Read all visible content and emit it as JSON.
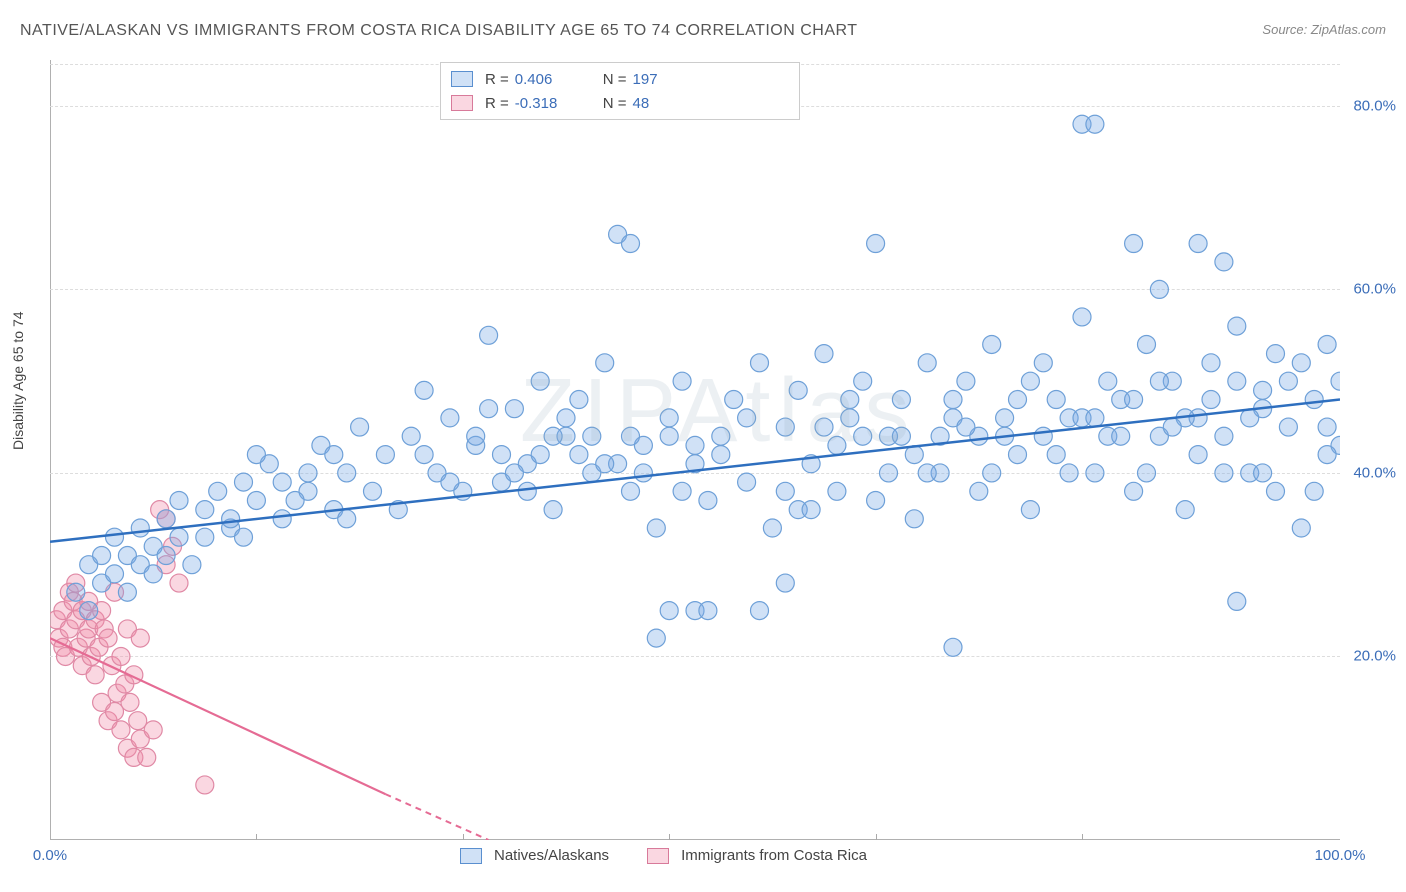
{
  "title": "NATIVE/ALASKAN VS IMMIGRANTS FROM COSTA RICA DISABILITY AGE 65 TO 74 CORRELATION CHART",
  "source_label": "Source:",
  "source_value": "ZipAtlas.com",
  "ylabel": "Disability Age 65 to 74",
  "watermark": "ZIPAtlas",
  "chart": {
    "type": "scatter",
    "xlim": [
      0,
      100
    ],
    "ylim": [
      0,
      85
    ],
    "xtick_labels": [
      "0.0%",
      "100.0%"
    ],
    "xtick_positions": [
      0,
      100
    ],
    "xtick_minor": [
      16,
      32,
      48,
      64,
      80
    ],
    "ytick_labels": [
      "20.0%",
      "40.0%",
      "60.0%",
      "80.0%"
    ],
    "ytick_positions": [
      20,
      40,
      60,
      80
    ],
    "grid_color": "#dddddd",
    "axis_color": "#b0b0b0",
    "label_color": "#3b6db8",
    "background": "#ffffff"
  },
  "series": {
    "blue": {
      "name": "Natives/Alaskans",
      "r": "0.406",
      "n": "197",
      "fill": "rgba(120,170,230,0.35)",
      "stroke": "#6ea0d8",
      "line_color": "#2e6fbf",
      "trend": {
        "x1": 0,
        "y1": 32.5,
        "x2": 100,
        "y2": 48
      },
      "marker_r": 9,
      "points": [
        [
          2,
          27
        ],
        [
          3,
          30
        ],
        [
          3,
          25
        ],
        [
          4,
          28
        ],
        [
          4,
          31
        ],
        [
          5,
          29
        ],
        [
          5,
          33
        ],
        [
          6,
          27
        ],
        [
          6,
          31
        ],
        [
          7,
          30
        ],
        [
          7,
          34
        ],
        [
          8,
          29
        ],
        [
          8,
          32
        ],
        [
          9,
          35
        ],
        [
          9,
          31
        ],
        [
          10,
          33
        ],
        [
          10,
          37
        ],
        [
          11,
          30
        ],
        [
          12,
          36
        ],
        [
          12,
          33
        ],
        [
          13,
          38
        ],
        [
          14,
          34
        ],
        [
          15,
          39
        ],
        [
          15,
          33
        ],
        [
          16,
          37
        ],
        [
          17,
          41
        ],
        [
          18,
          35
        ],
        [
          18,
          39
        ],
        [
          20,
          38
        ],
        [
          21,
          43
        ],
        [
          22,
          36
        ],
        [
          23,
          40
        ],
        [
          24,
          45
        ],
        [
          25,
          38
        ],
        [
          26,
          42
        ],
        [
          27,
          36
        ],
        [
          28,
          44
        ],
        [
          29,
          49
        ],
        [
          30,
          40
        ],
        [
          31,
          46
        ],
        [
          32,
          38
        ],
        [
          33,
          43
        ],
        [
          34,
          55
        ],
        [
          35,
          39
        ],
        [
          36,
          47
        ],
        [
          37,
          41
        ],
        [
          38,
          50
        ],
        [
          39,
          36
        ],
        [
          40,
          44
        ],
        [
          41,
          48
        ],
        [
          42,
          40
        ],
        [
          43,
          52
        ],
        [
          44,
          66
        ],
        [
          45,
          65
        ],
        [
          45,
          38
        ],
        [
          46,
          43
        ],
        [
          47,
          34
        ],
        [
          48,
          46
        ],
        [
          49,
          50
        ],
        [
          50,
          41
        ],
        [
          51,
          37
        ],
        [
          52,
          44
        ],
        [
          53,
          48
        ],
        [
          54,
          39
        ],
        [
          55,
          52
        ],
        [
          56,
          34
        ],
        [
          57,
          45
        ],
        [
          58,
          49
        ],
        [
          59,
          41
        ],
        [
          60,
          53
        ],
        [
          61,
          38
        ],
        [
          62,
          46
        ],
        [
          63,
          50
        ],
        [
          64,
          37
        ],
        [
          64,
          65
        ],
        [
          65,
          44
        ],
        [
          66,
          48
        ],
        [
          67,
          35
        ],
        [
          68,
          52
        ],
        [
          69,
          40
        ],
        [
          70,
          46
        ],
        [
          71,
          50
        ],
        [
          70,
          21
        ],
        [
          72,
          38
        ],
        [
          73,
          54
        ],
        [
          74,
          44
        ],
        [
          75,
          48
        ],
        [
          76,
          36
        ],
        [
          77,
          52
        ],
        [
          78,
          42
        ],
        [
          79,
          46
        ],
        [
          80,
          57
        ],
        [
          80,
          78
        ],
        [
          81,
          40
        ],
        [
          81,
          78
        ],
        [
          82,
          50
        ],
        [
          83,
          48
        ],
        [
          84,
          38
        ],
        [
          84,
          65
        ],
        [
          85,
          54
        ],
        [
          86,
          44
        ],
        [
          86,
          60
        ],
        [
          87,
          50
        ],
        [
          88,
          36
        ],
        [
          89,
          65
        ],
        [
          89,
          46
        ],
        [
          90,
          52
        ],
        [
          91,
          44
        ],
        [
          91,
          63
        ],
        [
          92,
          26
        ],
        [
          92,
          56
        ],
        [
          93,
          40
        ],
        [
          94,
          49
        ],
        [
          95,
          53
        ],
        [
          96,
          45
        ],
        [
          97,
          52
        ],
        [
          98,
          48
        ],
        [
          98,
          38
        ],
        [
          99,
          54
        ],
        [
          99,
          45
        ],
        [
          100,
          50
        ],
        [
          100,
          43
        ],
        [
          19,
          37
        ],
        [
          20,
          40
        ],
        [
          22,
          42
        ],
        [
          14,
          35
        ],
        [
          16,
          42
        ],
        [
          34,
          47
        ],
        [
          36,
          40
        ],
        [
          38,
          42
        ],
        [
          40,
          46
        ],
        [
          42,
          44
        ],
        [
          44,
          41
        ],
        [
          46,
          40
        ],
        [
          48,
          44
        ],
        [
          50,
          43
        ],
        [
          52,
          42
        ],
        [
          54,
          46
        ],
        [
          58,
          36
        ],
        [
          60,
          45
        ],
        [
          62,
          48
        ],
        [
          66,
          44
        ],
        [
          68,
          40
        ],
        [
          70,
          48
        ],
        [
          72,
          44
        ],
        [
          74,
          46
        ],
        [
          76,
          50
        ],
        [
          78,
          48
        ],
        [
          80,
          46
        ],
        [
          82,
          44
        ],
        [
          84,
          48
        ],
        [
          86,
          50
        ],
        [
          88,
          46
        ],
        [
          90,
          48
        ],
        [
          92,
          50
        ],
        [
          94,
          47
        ],
        [
          29,
          42
        ],
        [
          31,
          39
        ],
        [
          33,
          44
        ],
        [
          35,
          42
        ],
        [
          37,
          38
        ],
        [
          39,
          44
        ],
        [
          41,
          42
        ],
        [
          43,
          41
        ],
        [
          45,
          44
        ],
        [
          47,
          22
        ],
        [
          49,
          38
        ],
        [
          23,
          35
        ],
        [
          48,
          25
        ],
        [
          50,
          25
        ],
        [
          51,
          25
        ],
        [
          55,
          25
        ],
        [
          57,
          28
        ],
        [
          57,
          38
        ],
        [
          59,
          36
        ],
        [
          61,
          43
        ],
        [
          63,
          44
        ],
        [
          65,
          40
        ],
        [
          67,
          42
        ],
        [
          69,
          44
        ],
        [
          71,
          45
        ],
        [
          73,
          40
        ],
        [
          75,
          42
        ],
        [
          77,
          44
        ],
        [
          79,
          40
        ],
        [
          81,
          46
        ],
        [
          83,
          44
        ],
        [
          85,
          40
        ],
        [
          87,
          45
        ],
        [
          89,
          42
        ],
        [
          91,
          40
        ],
        [
          93,
          46
        ],
        [
          95,
          38
        ],
        [
          97,
          34
        ],
        [
          99,
          42
        ],
        [
          96,
          50
        ],
        [
          94,
          40
        ]
      ]
    },
    "pink": {
      "name": "Immigrants from Costa Rica",
      "r": "-0.318",
      "n": "48",
      "fill": "rgba(240,140,170,0.35)",
      "stroke": "#e089a5",
      "line_color": "#e56b94",
      "trend_solid": {
        "x1": 0,
        "y1": 22,
        "x2": 26,
        "y2": 5
      },
      "trend_dash": {
        "x1": 26,
        "y1": 5,
        "x2": 34,
        "y2": 0
      },
      "marker_r": 9,
      "points": [
        [
          0.5,
          24
        ],
        [
          0.7,
          22
        ],
        [
          1,
          25
        ],
        [
          1,
          21
        ],
        [
          1.2,
          20
        ],
        [
          1.5,
          23
        ],
        [
          1.5,
          27
        ],
        [
          1.8,
          26
        ],
        [
          2,
          28
        ],
        [
          2,
          24
        ],
        [
          2.2,
          21
        ],
        [
          2.5,
          25
        ],
        [
          2.5,
          19
        ],
        [
          2.8,
          22
        ],
        [
          3,
          26
        ],
        [
          3,
          23
        ],
        [
          3.2,
          20
        ],
        [
          3.5,
          24
        ],
        [
          3.5,
          18
        ],
        [
          3.8,
          21
        ],
        [
          4,
          25
        ],
        [
          4,
          15
        ],
        [
          4.2,
          23
        ],
        [
          4.5,
          13
        ],
        [
          4.5,
          22
        ],
        [
          4.8,
          19
        ],
        [
          5,
          14
        ],
        [
          5,
          27
        ],
        [
          5.2,
          16
        ],
        [
          5.5,
          12
        ],
        [
          5.5,
          20
        ],
        [
          5.8,
          17
        ],
        [
          6,
          10
        ],
        [
          6,
          23
        ],
        [
          6.2,
          15
        ],
        [
          6.5,
          9
        ],
        [
          6.5,
          18
        ],
        [
          6.8,
          13
        ],
        [
          7,
          11
        ],
        [
          7,
          22
        ],
        [
          7.5,
          9
        ],
        [
          8,
          12
        ],
        [
          8.5,
          36
        ],
        [
          9,
          35
        ],
        [
          9,
          30
        ],
        [
          9.5,
          32
        ],
        [
          10,
          28
        ],
        [
          12,
          6
        ]
      ]
    }
  },
  "legend_bottom": {
    "item1": "Natives/Alaskans",
    "item2": "Immigrants from Costa Rica"
  },
  "stats_labels": {
    "r": "R =",
    "n": "N ="
  }
}
